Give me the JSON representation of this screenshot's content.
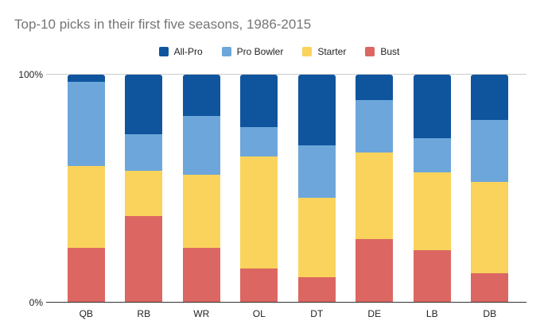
{
  "title": "Top-10 picks in their first five seasons, 1986-2015",
  "colors": {
    "background": "#ffffff",
    "title_text": "#757575",
    "axis_text": "#222222",
    "gridline": "#cccccc",
    "baseline": "#333333"
  },
  "y_axis": {
    "max_label": "100%",
    "min_label": "0%"
  },
  "chart_data": {
    "type": "bar",
    "stacked": true,
    "stack_unit": "percent",
    "title": "Top-10 picks in their first five seasons, 1986-2015",
    "categories": [
      "QB",
      "RB",
      "WR",
      "OL",
      "DT",
      "DE",
      "LB",
      "DB"
    ],
    "series": [
      {
        "name": "All-Pro",
        "color": "#0f559e",
        "values": [
          3,
          26,
          18,
          23,
          31,
          11,
          28,
          20
        ]
      },
      {
        "name": "Pro Bowler",
        "color": "#6da6da",
        "values": [
          37,
          16,
          26,
          13,
          23,
          23,
          15,
          27
        ]
      },
      {
        "name": "Starter",
        "color": "#fad35c",
        "values": [
          36,
          20,
          32,
          49,
          35,
          38,
          34,
          40
        ]
      },
      {
        "name": "Bust",
        "color": "#dc6662",
        "values": [
          24,
          38,
          24,
          15,
          11,
          28,
          23,
          13
        ]
      }
    ],
    "ylim": [
      0,
      100
    ],
    "y_tick_labels": [
      "0%",
      "100%"
    ],
    "grid": "line-at-100-only",
    "legend_position": "top-center",
    "bar_order_top_to_bottom": [
      "All-Pro",
      "Pro Bowler",
      "Starter",
      "Bust"
    ]
  }
}
